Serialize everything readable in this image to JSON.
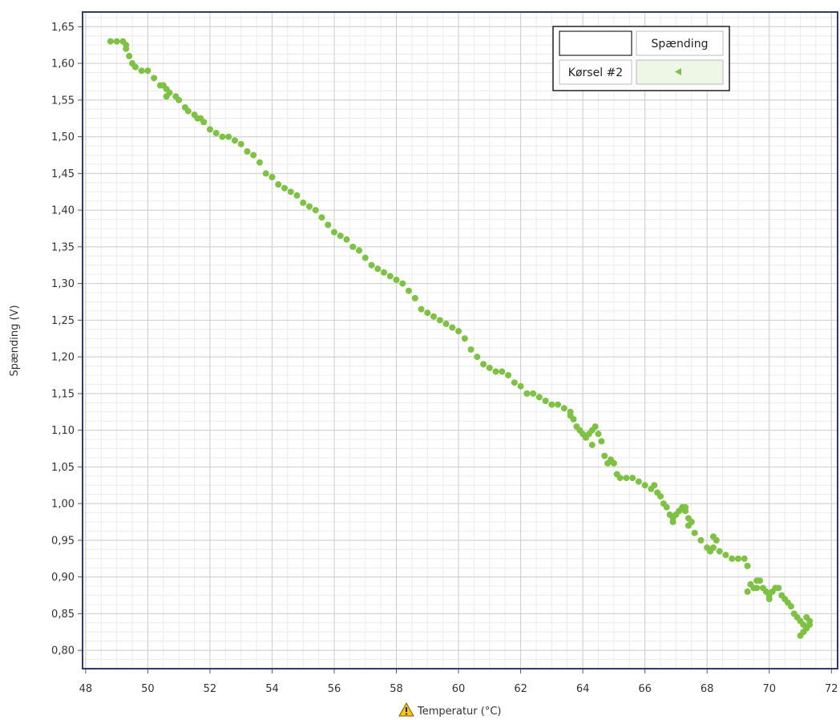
{
  "chart_data": {
    "type": "scatter",
    "xlabel": "Temperatur (°C)",
    "ylabel": "Spænding (V)",
    "xlim": [
      47.9,
      72.2
    ],
    "ylim": [
      0.775,
      1.67
    ],
    "x_ticks": [
      "48",
      "50",
      "52",
      "54",
      "56",
      "58",
      "60",
      "62",
      "64",
      "66",
      "68",
      "70",
      "72"
    ],
    "y_ticks": [
      "0,80",
      "0,85",
      "0,90",
      "0,95",
      "1,00",
      "1,05",
      "1,10",
      "1,15",
      "1,20",
      "1,25",
      "1,30",
      "1,35",
      "1,40",
      "1,45",
      "1,50",
      "1,55",
      "1,60",
      "1,65"
    ],
    "grid": true,
    "legend": {
      "position": "top-right",
      "header": "Spænding",
      "row_label": "Kørsel #2"
    },
    "colors": {
      "series": "#7dc242",
      "grid_major": "#cdcdcd",
      "grid_minor": "#ececec",
      "frame": "#2f3b6b",
      "legend_swatch_bg": "#eef6e6"
    },
    "warning_icon": "warning-triangle-icon",
    "series": [
      {
        "name": "Kørsel #2",
        "points": [
          [
            48.8,
            1.63
          ],
          [
            49.0,
            1.63
          ],
          [
            49.2,
            1.63
          ],
          [
            49.3,
            1.62
          ],
          [
            49.4,
            1.61
          ],
          [
            49.5,
            1.6
          ],
          [
            49.6,
            1.595
          ],
          [
            49.8,
            1.59
          ],
          [
            50.0,
            1.59
          ],
          [
            50.2,
            1.58
          ],
          [
            50.4,
            1.57
          ],
          [
            50.5,
            1.57
          ],
          [
            50.6,
            1.565
          ],
          [
            50.7,
            1.56
          ],
          [
            50.9,
            1.555
          ],
          [
            51.0,
            1.55
          ],
          [
            51.2,
            1.54
          ],
          [
            51.3,
            1.535
          ],
          [
            51.5,
            1.53
          ],
          [
            51.6,
            1.525
          ],
          [
            51.8,
            1.52
          ],
          [
            52.0,
            1.51
          ],
          [
            52.2,
            1.505
          ],
          [
            52.4,
            1.5
          ],
          [
            52.6,
            1.5
          ],
          [
            52.8,
            1.495
          ],
          [
            53.0,
            1.49
          ],
          [
            53.2,
            1.48
          ],
          [
            53.4,
            1.475
          ],
          [
            53.6,
            1.465
          ],
          [
            53.8,
            1.45
          ],
          [
            54.0,
            1.445
          ],
          [
            54.2,
            1.435
          ],
          [
            54.4,
            1.43
          ],
          [
            54.6,
            1.425
          ],
          [
            54.8,
            1.42
          ],
          [
            55.0,
            1.41
          ],
          [
            55.2,
            1.405
          ],
          [
            55.4,
            1.4
          ],
          [
            55.6,
            1.39
          ],
          [
            55.8,
            1.38
          ],
          [
            56.0,
            1.37
          ],
          [
            56.2,
            1.365
          ],
          [
            56.4,
            1.36
          ],
          [
            56.6,
            1.35
          ],
          [
            56.8,
            1.345
          ],
          [
            57.0,
            1.335
          ],
          [
            57.2,
            1.325
          ],
          [
            57.4,
            1.32
          ],
          [
            57.6,
            1.315
          ],
          [
            57.8,
            1.31
          ],
          [
            58.0,
            1.305
          ],
          [
            58.2,
            1.3
          ],
          [
            58.4,
            1.29
          ],
          [
            58.6,
            1.28
          ],
          [
            58.8,
            1.265
          ],
          [
            59.0,
            1.26
          ],
          [
            59.2,
            1.255
          ],
          [
            59.4,
            1.25
          ],
          [
            59.6,
            1.245
          ],
          [
            59.8,
            1.24
          ],
          [
            60.0,
            1.235
          ],
          [
            60.2,
            1.225
          ],
          [
            60.4,
            1.21
          ],
          [
            60.6,
            1.2
          ],
          [
            60.8,
            1.19
          ],
          [
            61.0,
            1.185
          ],
          [
            61.2,
            1.18
          ],
          [
            61.4,
            1.18
          ],
          [
            61.6,
            1.175
          ],
          [
            61.8,
            1.165
          ],
          [
            62.0,
            1.16
          ],
          [
            62.2,
            1.15
          ],
          [
            62.4,
            1.15
          ],
          [
            62.6,
            1.145
          ],
          [
            62.8,
            1.14
          ],
          [
            63.0,
            1.135
          ],
          [
            63.2,
            1.135
          ],
          [
            63.4,
            1.13
          ],
          [
            63.6,
            1.125
          ],
          [
            63.7,
            1.115
          ],
          [
            63.8,
            1.105
          ],
          [
            63.9,
            1.1
          ],
          [
            64.0,
            1.095
          ],
          [
            64.1,
            1.09
          ],
          [
            64.2,
            1.095
          ],
          [
            64.3,
            1.1
          ],
          [
            64.4,
            1.105
          ],
          [
            64.5,
            1.095
          ],
          [
            64.6,
            1.085
          ],
          [
            64.7,
            1.065
          ],
          [
            64.8,
            1.055
          ],
          [
            64.9,
            1.06
          ],
          [
            65.0,
            1.055
          ],
          [
            65.1,
            1.04
          ],
          [
            65.2,
            1.035
          ],
          [
            65.4,
            1.035
          ],
          [
            65.6,
            1.035
          ],
          [
            65.8,
            1.03
          ],
          [
            66.0,
            1.025
          ],
          [
            66.2,
            1.02
          ],
          [
            66.3,
            1.025
          ],
          [
            66.4,
            1.015
          ],
          [
            66.5,
            1.01
          ],
          [
            66.6,
            1.0
          ],
          [
            66.7,
            0.995
          ],
          [
            66.8,
            0.985
          ],
          [
            66.9,
            0.98
          ],
          [
            67.0,
            0.985
          ],
          [
            67.1,
            0.99
          ],
          [
            67.2,
            0.995
          ],
          [
            67.3,
            0.99
          ],
          [
            67.4,
            0.98
          ],
          [
            67.5,
            0.975
          ],
          [
            67.6,
            0.96
          ],
          [
            67.8,
            0.95
          ],
          [
            68.0,
            0.94
          ],
          [
            68.1,
            0.935
          ],
          [
            68.2,
            0.94
          ],
          [
            68.3,
            0.95
          ],
          [
            68.4,
            0.935
          ],
          [
            68.6,
            0.93
          ],
          [
            68.8,
            0.925
          ],
          [
            69.0,
            0.925
          ],
          [
            69.2,
            0.925
          ],
          [
            69.3,
            0.915
          ],
          [
            69.4,
            0.89
          ],
          [
            69.5,
            0.885
          ],
          [
            69.6,
            0.885
          ],
          [
            69.7,
            0.895
          ],
          [
            69.8,
            0.885
          ],
          [
            69.9,
            0.88
          ],
          [
            70.0,
            0.875
          ],
          [
            70.1,
            0.88
          ],
          [
            70.2,
            0.885
          ],
          [
            70.3,
            0.885
          ],
          [
            70.4,
            0.875
          ],
          [
            70.5,
            0.87
          ],
          [
            70.6,
            0.865
          ],
          [
            70.7,
            0.86
          ],
          [
            70.8,
            0.85
          ],
          [
            70.9,
            0.845
          ],
          [
            71.0,
            0.84
          ],
          [
            71.1,
            0.835
          ],
          [
            71.2,
            0.83
          ],
          [
            71.3,
            0.84
          ],
          [
            71.0,
            0.82
          ],
          [
            71.1,
            0.825
          ],
          [
            71.2,
            0.845
          ],
          [
            71.3,
            0.835
          ],
          [
            69.3,
            0.88
          ],
          [
            69.6,
            0.895
          ],
          [
            70.0,
            0.87
          ],
          [
            67.3,
            0.995
          ],
          [
            67.4,
            0.97
          ],
          [
            66.9,
            0.975
          ],
          [
            68.2,
            0.955
          ],
          [
            64.3,
            1.08
          ],
          [
            63.6,
            1.12
          ],
          [
            49.3,
            1.625
          ],
          [
            50.6,
            1.555
          ],
          [
            51.7,
            1.525
          ]
        ]
      }
    ]
  }
}
